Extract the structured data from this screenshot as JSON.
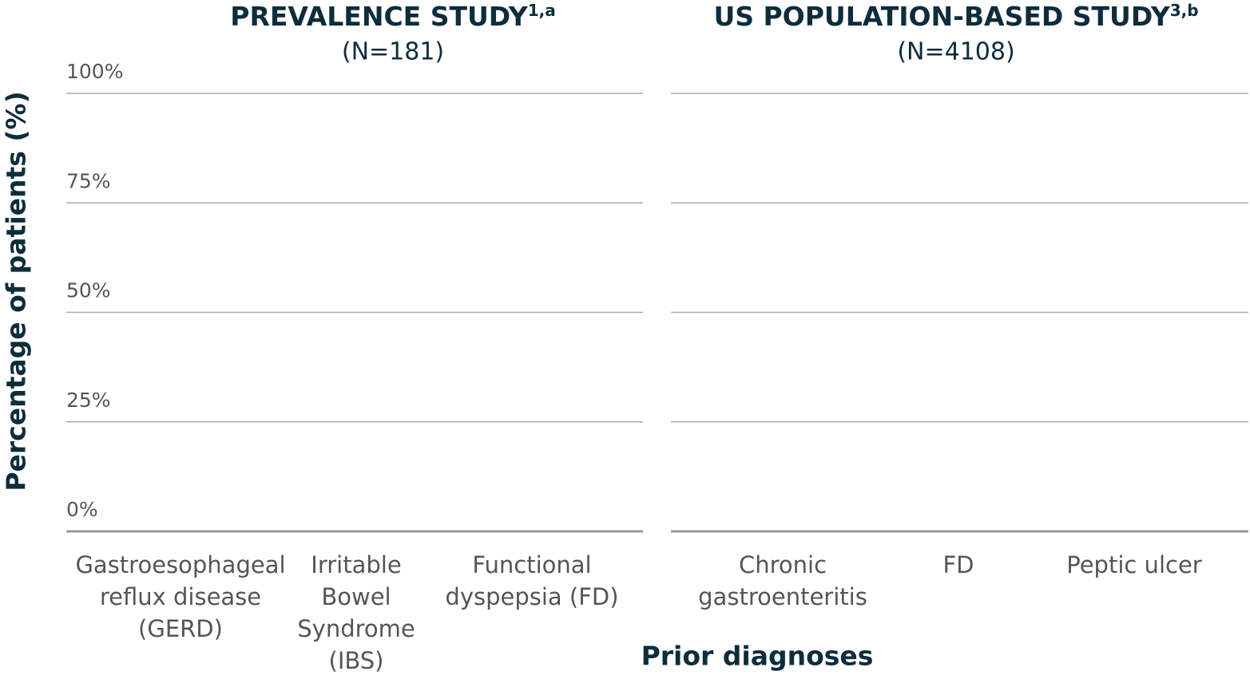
{
  "axis_labels": {
    "y": "Percentage of patients (%)",
    "x": "Prior diagnoses"
  },
  "chart_data": [
    {
      "type": "bar",
      "title": "PREVALENCE STUDY",
      "title_superscript": "1,a",
      "subtitle": "(N=181)",
      "categories": [
        "Gastroesophageal reflux disease (GERD)",
        "Irritable Bowel Syndrome (IBS)",
        "Functional dyspepsia (FD)"
      ],
      "ylim": [
        0,
        100
      ],
      "yticks": [
        {
          "value": 0,
          "label": "0%"
        },
        {
          "value": 25,
          "label": "25%"
        },
        {
          "value": 50,
          "label": "50%"
        },
        {
          "value": 75,
          "label": "75%"
        },
        {
          "value": 100,
          "label": "100%"
        }
      ],
      "grid": true
    },
    {
      "type": "bar",
      "title": "US POPULATION-BASED STUDY",
      "title_superscript": "3,b",
      "subtitle": "(N=4108)",
      "categories": [
        "Chronic gastroenteritis",
        "FD",
        "Peptic ulcer"
      ],
      "ylim": [
        0,
        100
      ],
      "grid": true
    }
  ]
}
